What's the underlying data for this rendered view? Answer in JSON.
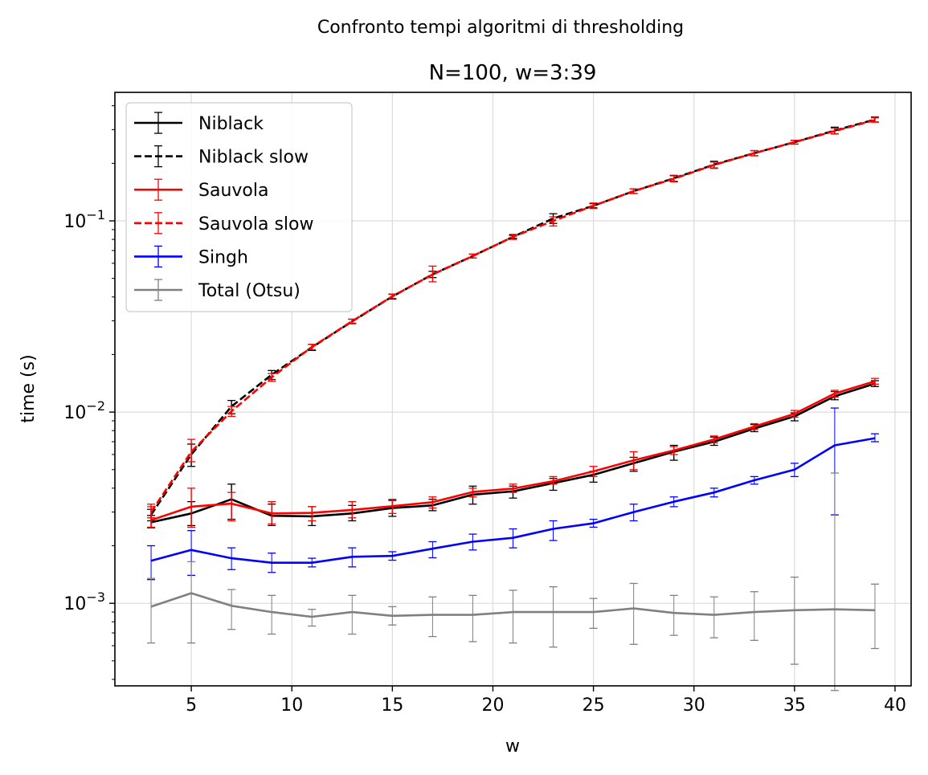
{
  "suptitle": "Confronto tempi algoritmi di thresholding",
  "chart_data": {
    "type": "line",
    "title": "N=100, w=3:39",
    "xlabel": "w",
    "ylabel": "time (s)",
    "xlim": [
      1.2,
      40.8
    ],
    "ylim": [
      0.00037,
      0.47
    ],
    "yscale": "log",
    "grid": true,
    "legend_position": "top-left",
    "x": [
      3,
      5,
      7,
      9,
      11,
      13,
      15,
      17,
      19,
      21,
      23,
      25,
      27,
      29,
      31,
      33,
      35,
      37,
      39
    ],
    "x_ticks": [
      {
        "value": 5,
        "label": "5"
      },
      {
        "value": 10,
        "label": "10"
      },
      {
        "value": 15,
        "label": "15"
      },
      {
        "value": 20,
        "label": "20"
      },
      {
        "value": 25,
        "label": "25"
      },
      {
        "value": 30,
        "label": "30"
      },
      {
        "value": 35,
        "label": "35"
      },
      {
        "value": 40,
        "label": "40"
      }
    ],
    "y_ticks": [
      {
        "value": 0.001,
        "mantissa": "10",
        "exponent": "−3"
      },
      {
        "value": 0.01,
        "mantissa": "10",
        "exponent": "−2"
      },
      {
        "value": 0.1,
        "mantissa": "10",
        "exponent": "−1"
      }
    ],
    "series": [
      {
        "name": "Niblack",
        "color": "#000000",
        "dash": "solid",
        "values": [
          0.00265,
          0.00295,
          0.0035,
          0.00287,
          0.00285,
          0.00295,
          0.00315,
          0.00325,
          0.0037,
          0.00385,
          0.00425,
          0.0047,
          0.0054,
          0.0062,
          0.007,
          0.0082,
          0.0095,
          0.0121,
          0.0141
        ],
        "err_low": [
          0.00248,
          0.00255,
          0.00275,
          0.00255,
          0.00255,
          0.0027,
          0.00285,
          0.00305,
          0.0033,
          0.00355,
          0.0039,
          0.0043,
          0.0049,
          0.0056,
          0.0067,
          0.0079,
          0.009,
          0.0116,
          0.0136
        ],
        "err_high": [
          0.00288,
          0.0034,
          0.0042,
          0.0033,
          0.0032,
          0.00325,
          0.00345,
          0.0035,
          0.0041,
          0.0041,
          0.0045,
          0.0049,
          0.0058,
          0.0067,
          0.0074,
          0.0086,
          0.0099,
          0.0128,
          0.0146
        ]
      },
      {
        "name": "Niblack slow",
        "color": "#000000",
        "dash": "dashed",
        "values": [
          0.0029,
          0.006,
          0.0107,
          0.0157,
          0.0218,
          0.0298,
          0.0402,
          0.0525,
          0.0655,
          0.0825,
          0.103,
          0.12,
          0.143,
          0.167,
          0.197,
          0.226,
          0.258,
          0.297,
          0.339
        ],
        "err_low": [
          0.0027,
          0.0052,
          0.0098,
          0.0148,
          0.021,
          0.029,
          0.039,
          0.0505,
          0.064,
          0.081,
          0.097,
          0.117,
          0.139,
          0.161,
          0.189,
          0.219,
          0.252,
          0.285,
          0.329
        ],
        "err_high": [
          0.0031,
          0.0068,
          0.0115,
          0.0165,
          0.0226,
          0.0306,
          0.0414,
          0.0545,
          0.067,
          0.084,
          0.109,
          0.123,
          0.147,
          0.173,
          0.205,
          0.233,
          0.264,
          0.309,
          0.349
        ]
      },
      {
        "name": "Sauvola",
        "color": "#ff0000",
        "dash": "solid",
        "values": [
          0.00272,
          0.0032,
          0.00332,
          0.00295,
          0.00297,
          0.00308,
          0.00322,
          0.00338,
          0.00382,
          0.00398,
          0.00435,
          0.0049,
          0.0056,
          0.0063,
          0.0072,
          0.0084,
          0.0098,
          0.0125,
          0.0145
        ],
        "err_low": [
          0.0025,
          0.0025,
          0.0027,
          0.0026,
          0.0027,
          0.0028,
          0.00295,
          0.00315,
          0.0036,
          0.0038,
          0.0042,
          0.0046,
          0.005,
          0.006,
          0.0069,
          0.0081,
          0.0094,
          0.012,
          0.014
        ],
        "err_high": [
          0.0033,
          0.004,
          0.0038,
          0.0034,
          0.0032,
          0.0034,
          0.0035,
          0.0036,
          0.004,
          0.0042,
          0.0046,
          0.0052,
          0.0062,
          0.0066,
          0.0075,
          0.0087,
          0.0102,
          0.013,
          0.015
        ]
      },
      {
        "name": "Sauvola slow",
        "color": "#ff0000",
        "dash": "dashed",
        "values": [
          0.003,
          0.0062,
          0.0101,
          0.0152,
          0.0219,
          0.0299,
          0.0403,
          0.0524,
          0.0655,
          0.0825,
          0.1,
          0.12,
          0.143,
          0.166,
          0.196,
          0.226,
          0.258,
          0.295,
          0.337
        ],
        "err_low": [
          0.0028,
          0.0055,
          0.0095,
          0.0145,
          0.0212,
          0.0292,
          0.0393,
          0.048,
          0.064,
          0.08,
          0.094,
          0.116,
          0.139,
          0.16,
          0.188,
          0.219,
          0.252,
          0.285,
          0.328
        ],
        "err_high": [
          0.0032,
          0.0072,
          0.0107,
          0.0159,
          0.0226,
          0.0306,
          0.0413,
          0.058,
          0.067,
          0.085,
          0.105,
          0.124,
          0.147,
          0.172,
          0.203,
          0.233,
          0.264,
          0.305,
          0.346
        ]
      },
      {
        "name": "Singh",
        "color": "#0000ff",
        "dash": "solid",
        "values": [
          0.00167,
          0.0019,
          0.00172,
          0.00163,
          0.00163,
          0.00175,
          0.00177,
          0.00193,
          0.0021,
          0.0022,
          0.00245,
          0.00262,
          0.003,
          0.0034,
          0.0038,
          0.0044,
          0.005,
          0.0067,
          0.0073
        ],
        "err_low": [
          0.00133,
          0.0014,
          0.0015,
          0.00145,
          0.00155,
          0.00155,
          0.00168,
          0.00173,
          0.0019,
          0.00195,
          0.00213,
          0.0025,
          0.0027,
          0.0032,
          0.0036,
          0.0042,
          0.0046,
          0.0029,
          0.007
        ],
        "err_high": [
          0.002,
          0.0024,
          0.00195,
          0.00183,
          0.00172,
          0.00195,
          0.00186,
          0.0021,
          0.0023,
          0.00245,
          0.0027,
          0.00275,
          0.0033,
          0.0036,
          0.004,
          0.0046,
          0.0054,
          0.0105,
          0.0077
        ]
      },
      {
        "name": "Total (Otsu)",
        "color": "#808080",
        "dash": "solid",
        "values": [
          0.00096,
          0.00113,
          0.00097,
          0.0009,
          0.00085,
          0.0009,
          0.00086,
          0.00087,
          0.00087,
          0.0009,
          0.0009,
          0.0009,
          0.00094,
          0.00089,
          0.00087,
          0.0009,
          0.00092,
          0.00093,
          0.00092
        ],
        "err_low": [
          0.00062,
          0.00062,
          0.00073,
          0.00069,
          0.00076,
          0.00069,
          0.00077,
          0.00067,
          0.00063,
          0.00062,
          0.00059,
          0.00074,
          0.00061,
          0.00068,
          0.00066,
          0.00064,
          0.00048,
          0.00035,
          0.00058
        ],
        "err_high": [
          0.00135,
          0.00165,
          0.00118,
          0.0011,
          0.00093,
          0.0011,
          0.00096,
          0.00108,
          0.0011,
          0.00117,
          0.00122,
          0.00106,
          0.00127,
          0.0011,
          0.00108,
          0.00115,
          0.00137,
          0.0048,
          0.00126
        ]
      }
    ]
  }
}
